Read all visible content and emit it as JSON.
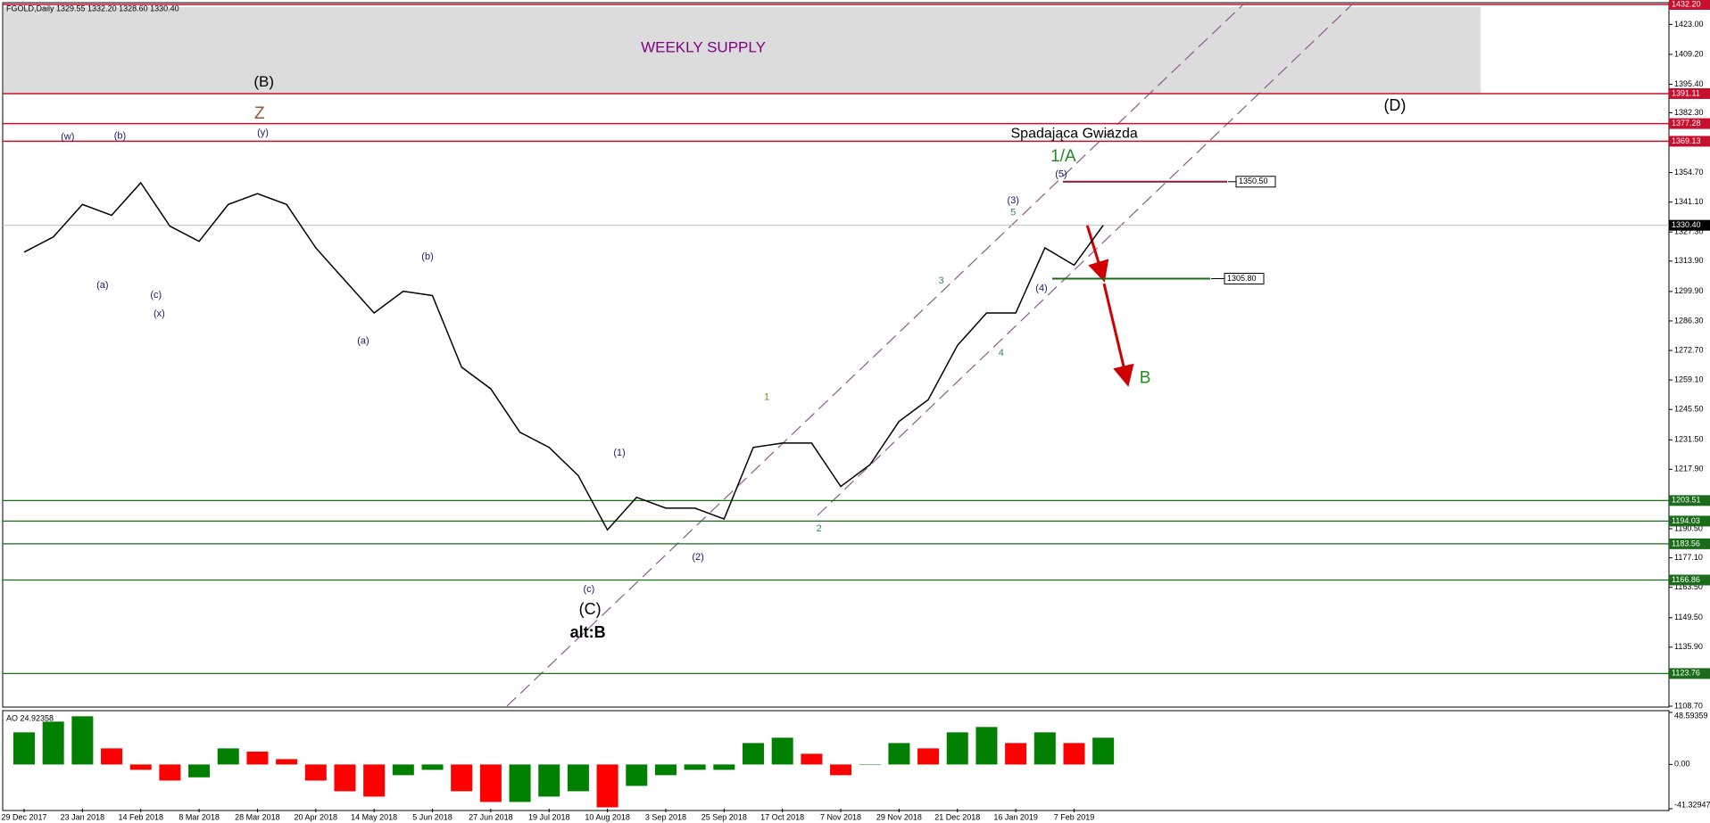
{
  "header": "FGOLD,Daily  1329.55 1332.20 1328.60 1330.40",
  "chart_data": {
    "type": "line",
    "categories": [
      "29 Dec 2017",
      null,
      "23 Jan 2018",
      null,
      "14 Feb 2018",
      null,
      "8 Mar 2018",
      null,
      "28 Mar 2018",
      null,
      "20 Apr 2018",
      null,
      "14 May 2018",
      null,
      "5 Jun 2018",
      null,
      "27 Jun 2018",
      null,
      "19 Jul 2018",
      null,
      "10 Aug 2018",
      null,
      "3 Sep 2018",
      null,
      "25 Sep 2018",
      null,
      "17 Oct 2018",
      null,
      "7 Nov 2018",
      null,
      "29 Nov 2018",
      null,
      "21 Dec 2018",
      null,
      "16 Jan 2019",
      null,
      "7 Feb 2019",
      null
    ],
    "values": [
      1318,
      1325,
      1340,
      1335,
      1350,
      1330,
      1323,
      1340,
      1345,
      1340,
      1320,
      1305,
      1290,
      1300,
      1298,
      1265,
      1255,
      1235,
      1228,
      1215,
      1190,
      1205,
      1200,
      1200,
      1195,
      1228,
      1230,
      1230,
      1210,
      1220,
      1240,
      1250,
      1275,
      1290,
      1290,
      1320,
      1312,
      1330.4
    ],
    "color": "#000000",
    "ylim": [
      1108.7,
      1432.2
    ],
    "yticks": [
      {
        "value": 1423,
        "label": "1423.00"
      },
      {
        "value": 1409.2,
        "label": "1409.20"
      },
      {
        "value": 1395.4,
        "label": "1395.40"
      },
      {
        "value": 1382.3,
        "label": "1382.30"
      },
      {
        "value": 1354.7,
        "label": "1354.70"
      },
      {
        "value": 1341.1,
        "label": "1341.10"
      },
      {
        "value": 1327.3,
        "label": "1327.30"
      },
      {
        "value": 1313.9,
        "label": "1313.90"
      },
      {
        "value": 1299.9,
        "label": "1299.90"
      },
      {
        "value": 1286.3,
        "label": "1286.30"
      },
      {
        "value": 1272.7,
        "label": "1272.70"
      },
      {
        "value": 1259.1,
        "label": "1259.10"
      },
      {
        "value": 1245.5,
        "label": "1245.50"
      },
      {
        "value": 1231.5,
        "label": "1231.50"
      },
      {
        "value": 1217.9,
        "label": "1217.90"
      },
      {
        "value": 1190.5,
        "label": "1190.50"
      },
      {
        "value": 1177.1,
        "label": "1177.10"
      },
      {
        "value": 1163.5,
        "label": "1163.50"
      },
      {
        "value": 1149.5,
        "label": "1149.50"
      },
      {
        "value": 1135.9,
        "label": "1135.90"
      },
      {
        "value": 1108.7,
        "label": "1108.70"
      }
    ],
    "grid": false,
    "current": {
      "value": 1330.4,
      "label": "1330.40"
    },
    "resistance_color": "#c8102e",
    "resistance_levels": [
      {
        "value": 1432.2,
        "label": "1432.20"
      },
      1391.11,
      1377.28,
      1369.13
    ],
    "support_color": "#1a6b1a",
    "support_levels": [
      1203.51,
      1194.03,
      1183.56,
      1166.86,
      1123.76
    ],
    "marked_levels": [
      {
        "value": 1350.5,
        "label": "1350.50",
        "color": "#8b1a3a"
      },
      {
        "value": 1305.8,
        "label": "1305.80",
        "color": "#1a6b1a"
      }
    ],
    "supply_zone": {
      "label": "WEEKLY SUPPLY",
      "color": "#dcdcdc"
    },
    "annotations": [
      "(B)",
      "Z",
      "(w)",
      "(b)",
      "(y)",
      "(a)",
      "(c)",
      "(x)",
      "(b)",
      "(a)",
      "(1)",
      "(c)",
      "(C)",
      "alt:B",
      "(2)",
      "1",
      "2",
      "3",
      "4",
      "5",
      "(3)",
      "(4)",
      "(5)",
      "1/A",
      "Spadająca Gwiazda",
      "(D)",
      "B"
    ],
    "oscillator": {
      "type": "bar",
      "label": "AO 24.92358",
      "values": [
        30,
        40,
        45,
        15,
        -5,
        -15,
        -12,
        15,
        12,
        5,
        -15,
        -25,
        -30,
        -10,
        -5,
        -25,
        -35,
        -35,
        -30,
        -25,
        -40,
        -20,
        -10,
        -5,
        -5,
        20,
        25,
        10,
        -10,
        0,
        20,
        15,
        30,
        35,
        20,
        30,
        20,
        25
      ],
      "ylim": [
        -41.32947,
        48.59359
      ],
      "yticks": [
        48.59359,
        {
          "value": 0,
          "label": "0.00"
        },
        -41.32947
      ],
      "up_color": "#008000",
      "down_color": "#ff0000"
    }
  }
}
